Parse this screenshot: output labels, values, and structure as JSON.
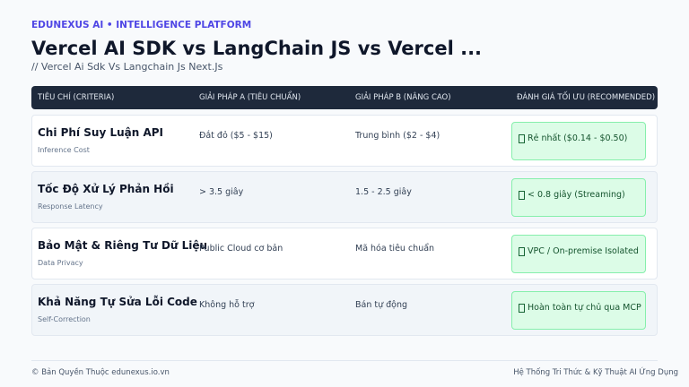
{
  "header": {
    "brand": "EDUNEXUS AI • INTELLIGENCE PLATFORM",
    "title": "Vercel AI SDK vs LangChain JS vs Vercel ...",
    "subtitle": "// Vercel Ai Sdk Vs Langchain Js Next.Js"
  },
  "table": {
    "columns": [
      "TIÊU CHÍ (CRITERIA)",
      "GIẢI PHÁP A (TIÊU CHUẨN)",
      "GIẢI PHÁP B (NÂNG CAO)",
      "ĐÁNH GIÁ TỐI ƯU (RECOMMENDED)"
    ],
    "rows": [
      {
        "name": "Chi Phí Suy Luận API",
        "sub": "Inference Cost",
        "a": "Đắt đỏ ($5 - $15)",
        "b": "Trung bình ($2 - $4)",
        "rec": "Rẻ nhất ($0.14 - $0.50)"
      },
      {
        "name": "Tốc Độ Xử Lý Phản Hồi",
        "sub": "Response Latency",
        "a": "> 3.5 giây",
        "b": "1.5 - 2.5 giây",
        "rec": "< 0.8 giây (Streaming)"
      },
      {
        "name": "Bảo Mật & Riêng Tư Dữ Liệu",
        "sub": "Data Privacy",
        "a": "Public Cloud cơ bản",
        "b": "Mã hóa tiêu chuẩn",
        "rec": "VPC / On-premise Isolated"
      },
      {
        "name": "Khả Năng Tự Sửa Lỗi Code",
        "sub": "Self-Correction",
        "a": "Không hỗ trợ",
        "b": "Bán tự động",
        "rec": "Hoàn toàn tự chủ qua MCP"
      }
    ]
  },
  "footer": {
    "left": "© Bản Quyền Thuộc edunexus.io.vn",
    "right": "Hệ Thống Tri Thức & Kỹ Thuật AI Ứng Dụng"
  }
}
